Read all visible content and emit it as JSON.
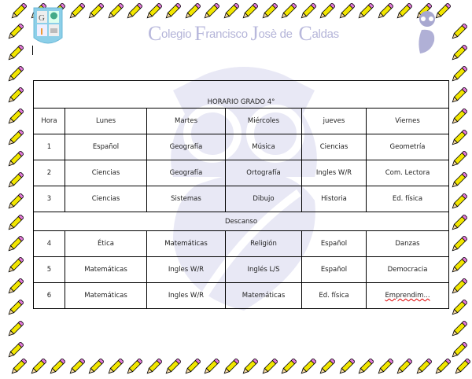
{
  "header": {
    "school_name_parts": [
      {
        "cap": "C",
        "rest": "olegio "
      },
      {
        "cap": "F",
        "rest": "rancisco "
      },
      {
        "cap": "J",
        "rest": "osè de  "
      },
      {
        "cap": "C",
        "rest": "aldas"
      }
    ],
    "logo_icon": "school-shield-logo",
    "owl_icon": "owl-logo"
  },
  "colors": {
    "watermark": "#e6e6f4",
    "school_text": "#b4b4d8",
    "pencil_body": "#f2e600",
    "pencil_eraser": "#e27ad8"
  },
  "schedule": {
    "title": "HORARIO GRADO 4°",
    "columns": [
      "Hora",
      "Lunes",
      "Martes",
      "Miércoles",
      "jueves",
      "Viernes"
    ],
    "rows_before_break": [
      [
        "1",
        "Español",
        "Geografía",
        "Música",
        "Ciencias",
        "Geometría"
      ],
      [
        "2",
        "Ciencias",
        "Geografía",
        "Ortografía",
        "Ingles W/R",
        "Com. Lectora"
      ],
      [
        "3",
        "Ciencias",
        "Sistemas",
        "Dibujo",
        "Historia",
        "Ed. física"
      ]
    ],
    "break_label": "Descanso",
    "rows_after_break": [
      [
        "4",
        "Ética",
        "Matemáticas",
        "Religión",
        "Español",
        "Danzas"
      ],
      [
        "5",
        "Matemáticas",
        "Ingles W/R",
        "Inglés L/S",
        "Español",
        "Democracia"
      ],
      [
        "6",
        "Matemáticas",
        "Ingles W/R",
        "Matemáticas",
        "Ed. física",
        "Emprendim..."
      ]
    ]
  }
}
